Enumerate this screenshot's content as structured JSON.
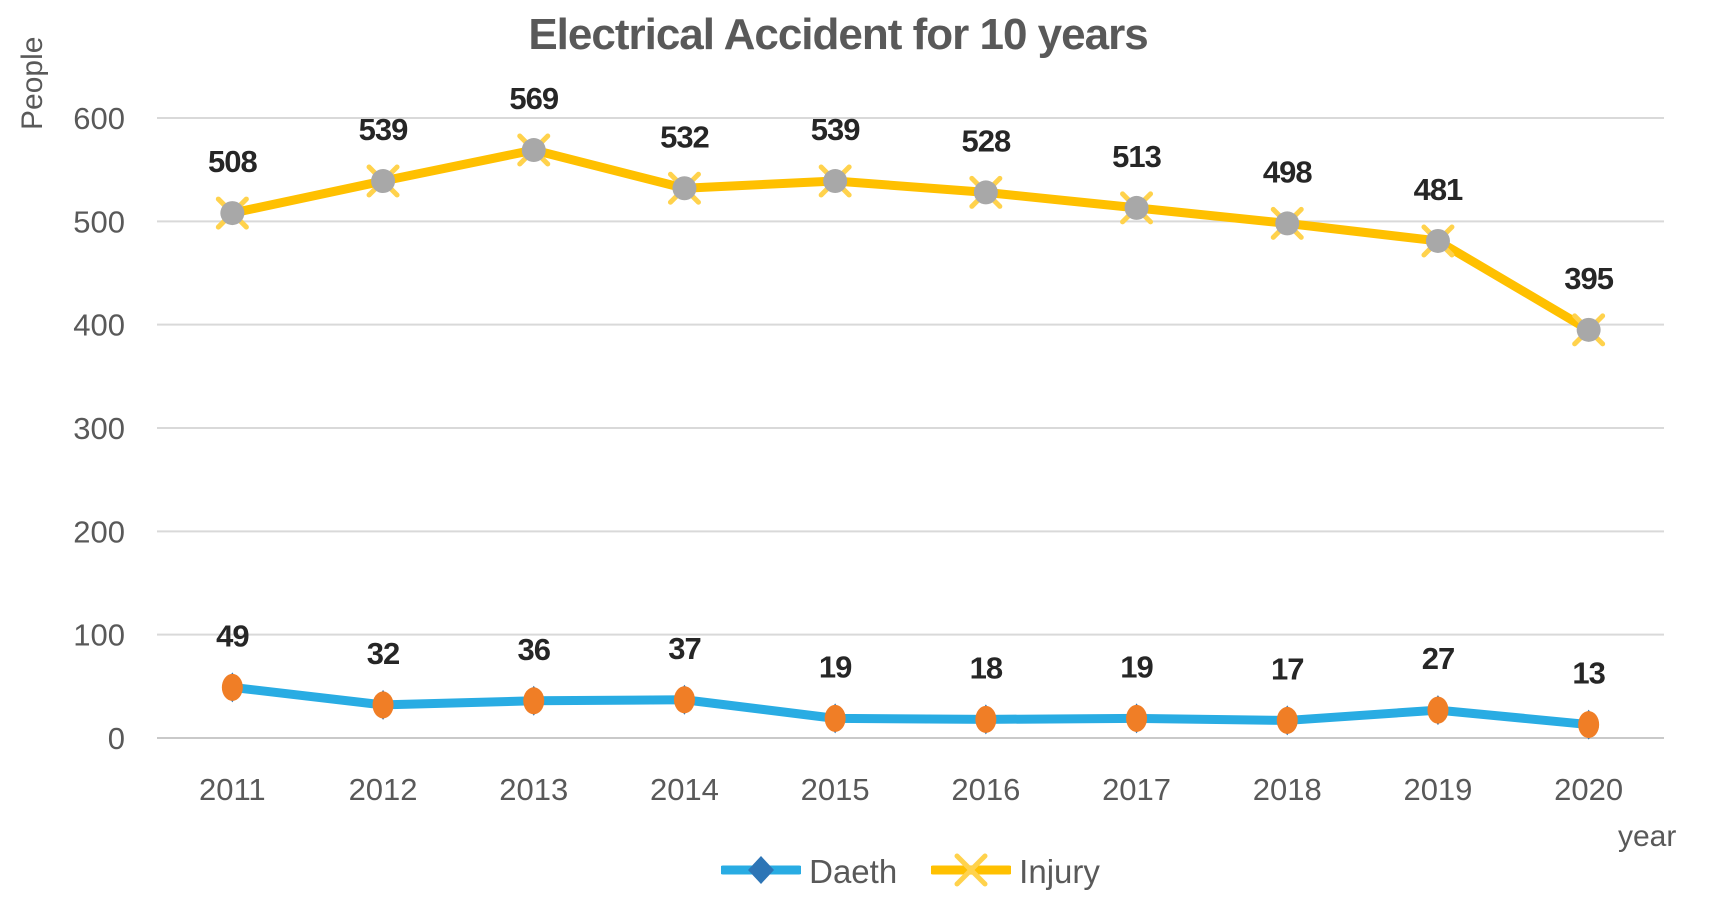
{
  "chart": {
    "title": "Electrical Accident for 10 years",
    "y_axis_label": "People",
    "x_axis_label": "year"
  },
  "chart_data": {
    "type": "line",
    "title": "Electrical Accident for 10 years",
    "xlabel": "year",
    "ylabel": "People",
    "categories": [
      "2011",
      "2012",
      "2013",
      "2014",
      "2015",
      "2016",
      "2017",
      "2018",
      "2019",
      "2020"
    ],
    "series": [
      {
        "name": "Daeth",
        "values": [
          49,
          32,
          36,
          37,
          19,
          18,
          19,
          17,
          27,
          13
        ],
        "color": "#29ACE3",
        "marker": "ellipse-over-diamond",
        "marker_fill": "#F07E26",
        "marker_accent": "#2E75B6"
      },
      {
        "name": "Injury",
        "values": [
          508,
          539,
          569,
          532,
          539,
          528,
          513,
          498,
          481,
          395
        ],
        "color": "#FFC000",
        "marker": "circle-over-x",
        "marker_fill": "#A8A8A8",
        "marker_accent": "#FFD24C"
      }
    ],
    "yticks": [
      0,
      100,
      200,
      300,
      400,
      500,
      600
    ],
    "ylim": [
      0,
      650
    ],
    "grid": true,
    "data_labels": true,
    "legend_position": "bottom"
  },
  "colors": {
    "grid": "#D9D9D9",
    "baseline": "#C9C9C9",
    "axis_text": "#595959",
    "data_label_text": "#262626",
    "title_text": "#595959",
    "background": "#FFFFFF"
  }
}
